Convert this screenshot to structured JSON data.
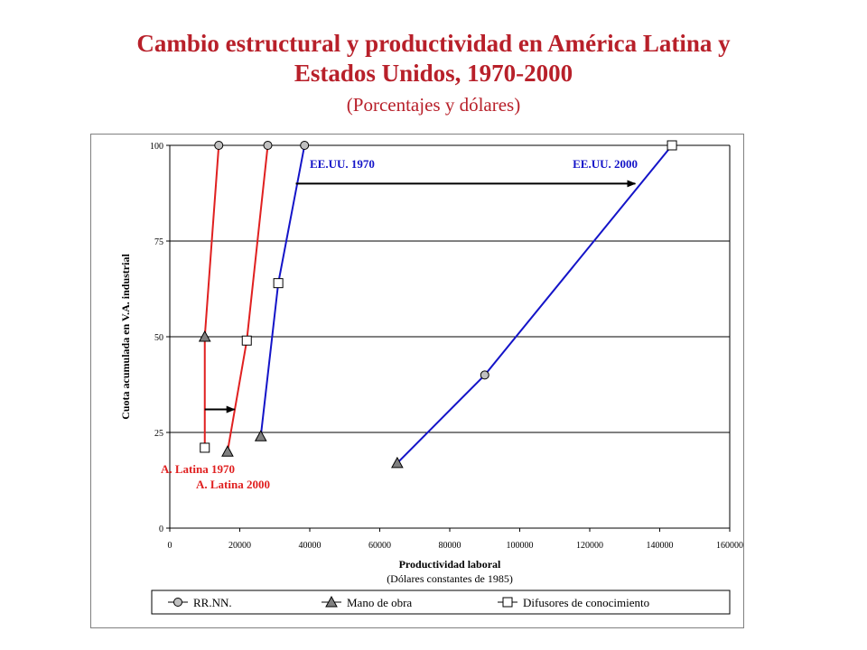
{
  "header": {
    "title_line1": "Cambio estructural y productividad en América Latina y",
    "title_line2": "Estados Unidos, 1970-2000",
    "subtitle": "(Porcentajes y dólares)"
  },
  "chart_data": {
    "type": "line",
    "title": "Cambio estructural y productividad en América Latina y Estados Unidos, 1970-2000",
    "subtitle": "(Porcentajes y dólares)",
    "xlabel": "Productividad laboral",
    "xlabel_note": "(Dólares constantes de 1985)",
    "ylabel": "Cuota acumulada en V.A. industrial",
    "xlim": [
      0,
      160000
    ],
    "ylim": [
      0,
      100
    ],
    "x_ticks": [
      0,
      20000,
      40000,
      60000,
      80000,
      100000,
      120000,
      140000,
      160000
    ],
    "y_ticks": [
      0,
      25,
      50,
      75,
      100
    ],
    "grid": "horizontal",
    "legend_position": "bottom",
    "legend": [
      {
        "label": "RR.NN.",
        "marker": "circle"
      },
      {
        "label": "Mano de obra",
        "marker": "triangle"
      },
      {
        "label": "Difusores de conocimiento",
        "marker": "square"
      }
    ],
    "series": [
      {
        "name": "A. Latina 1970",
        "color": "#e02020",
        "label_color": "#e02020",
        "points": [
          {
            "x": 10000,
            "y": 21,
            "marker": "square"
          },
          {
            "x": 10000,
            "y": 50,
            "marker": "triangle"
          },
          {
            "x": 14000,
            "y": 100,
            "marker": "circle"
          }
        ]
      },
      {
        "name": "A. Latina 2000",
        "color": "#e02020",
        "label_color": "#e02020",
        "points": [
          {
            "x": 16500,
            "y": 20,
            "marker": "triangle"
          },
          {
            "x": 22000,
            "y": 49,
            "marker": "square"
          },
          {
            "x": 28000,
            "y": 100,
            "marker": "circle"
          }
        ]
      },
      {
        "name": "EE.UU. 1970",
        "color": "#1414c8",
        "label_color": "#1414c8",
        "points": [
          {
            "x": 26000,
            "y": 24,
            "marker": "triangle"
          },
          {
            "x": 31000,
            "y": 64,
            "marker": "square"
          },
          {
            "x": 38500,
            "y": 100,
            "marker": "circle"
          }
        ]
      },
      {
        "name": "EE.UU. 2000",
        "color": "#1414c8",
        "label_color": "#1414c8",
        "points": [
          {
            "x": 65000,
            "y": 17,
            "marker": "triangle"
          },
          {
            "x": 90000,
            "y": 40,
            "marker": "circle"
          },
          {
            "x": 143500,
            "y": 100,
            "marker": "square"
          }
        ]
      }
    ],
    "annotations": [
      {
        "text": "A. Latina 1970",
        "color": "#e02020"
      },
      {
        "text": "A. Latina 2000",
        "color": "#e02020"
      },
      {
        "text": "EE.UU. 1970",
        "color": "#1414c8"
      },
      {
        "text": "EE.UU. 2000",
        "color": "#1414c8"
      }
    ],
    "arrows": [
      {
        "from": {
          "x": 10000,
          "y": 31
        },
        "to": {
          "x": 18500,
          "y": 31
        }
      },
      {
        "from": {
          "x": 36000,
          "y": 90
        },
        "to": {
          "x": 133000,
          "y": 90
        }
      }
    ]
  }
}
